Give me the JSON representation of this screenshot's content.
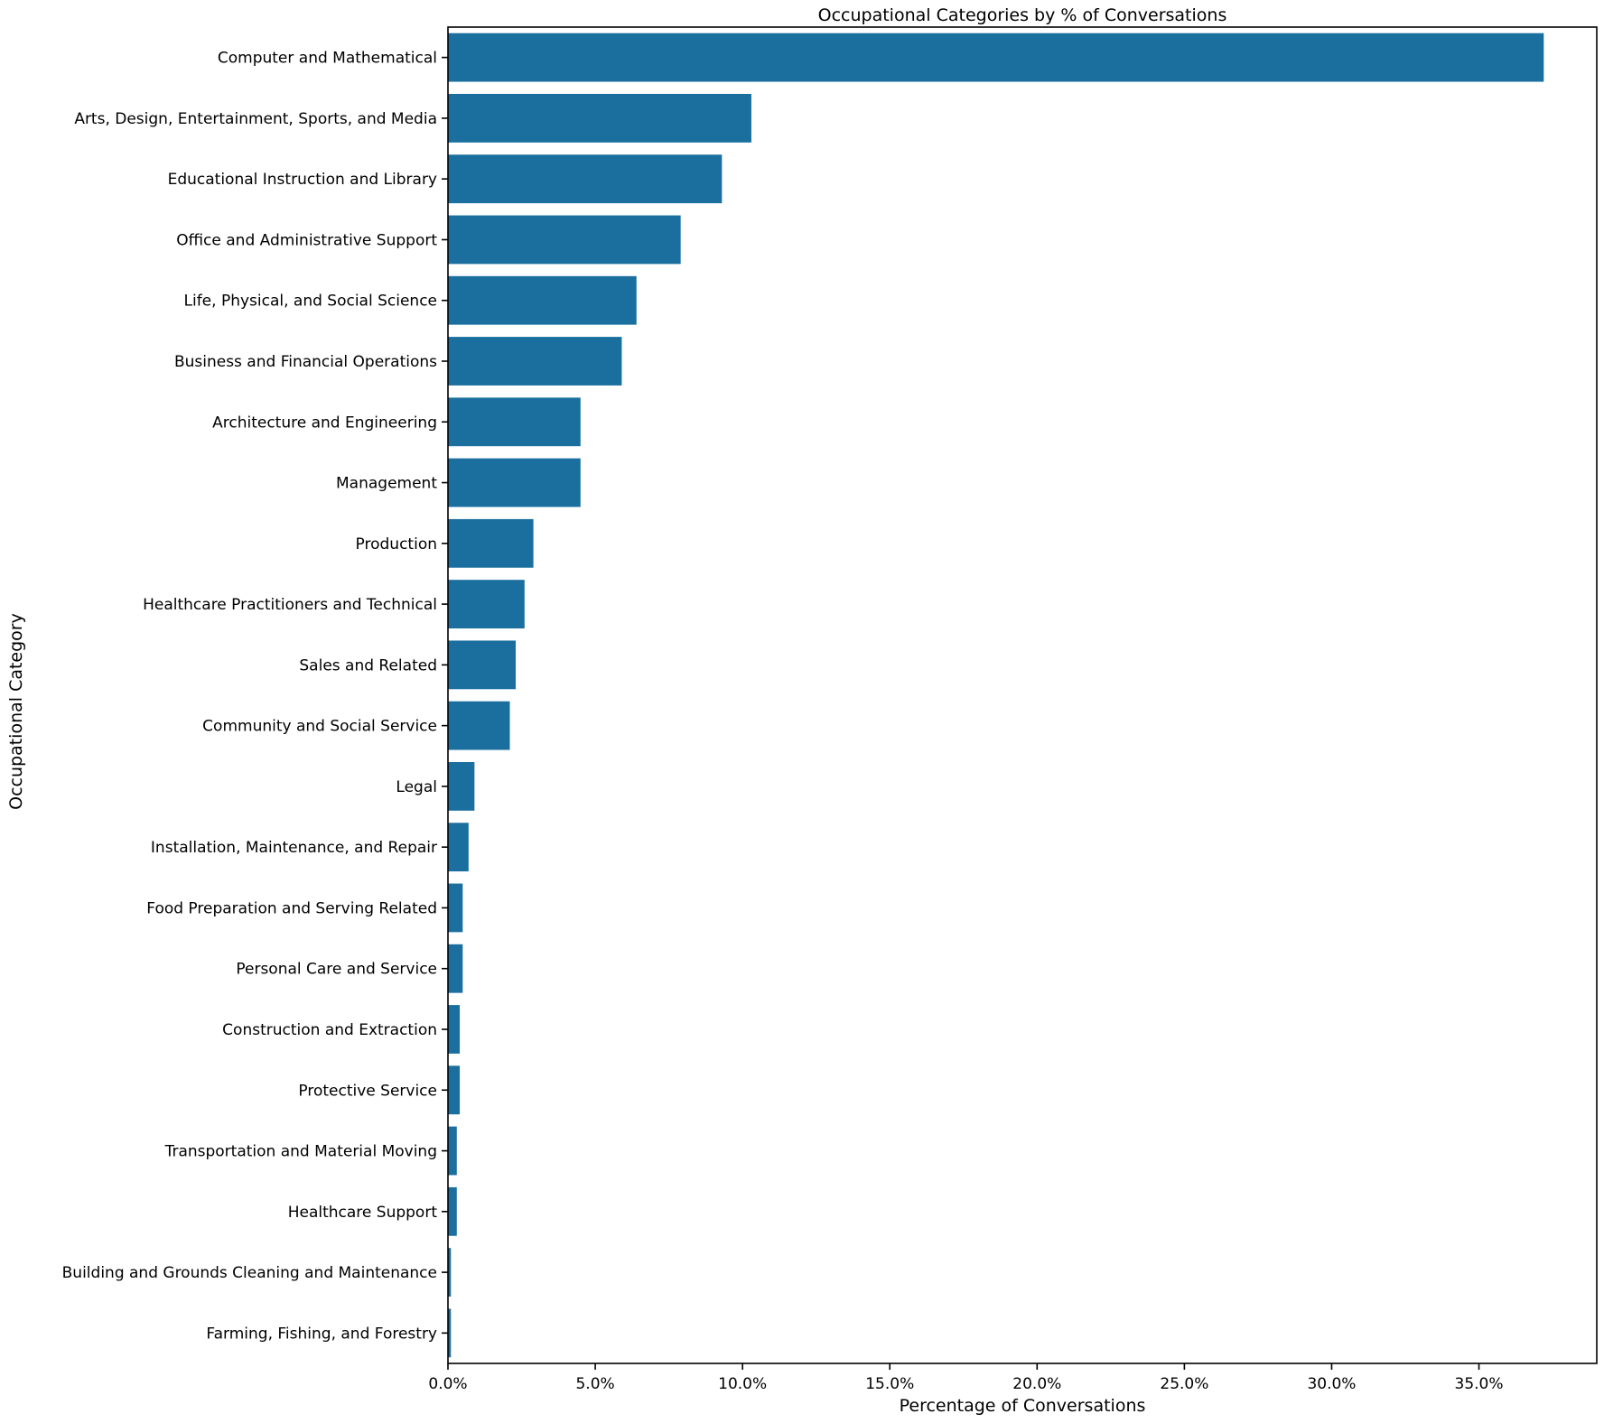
{
  "chart_data": {
    "type": "bar",
    "orientation": "horizontal",
    "title": "Occupational Categories by % of Conversations",
    "xlabel": "Percentage of Conversations",
    "ylabel": "Occupational Category",
    "xlim": [
      0,
      39
    ],
    "x_ticks": [
      0,
      5,
      10,
      15,
      20,
      25,
      30,
      35
    ],
    "x_tick_labels": [
      "0.0%",
      "5.0%",
      "10.0%",
      "15.0%",
      "20.0%",
      "25.0%",
      "30.0%",
      "35.0%"
    ],
    "grid": false,
    "legend": "none",
    "bar_color": "#1a6f9f",
    "categories": [
      "Computer and Mathematical",
      "Arts, Design, Entertainment, Sports, and Media",
      "Educational Instruction and Library",
      "Office and Administrative Support",
      "Life, Physical, and Social Science",
      "Business and Financial Operations",
      "Architecture and Engineering",
      "Management",
      "Production",
      "Healthcare Practitioners and Technical",
      "Sales and Related",
      "Community and Social Service",
      "Legal",
      "Installation, Maintenance, and Repair",
      "Food Preparation and Serving Related",
      "Personal Care and Service",
      "Construction and Extraction",
      "Protective Service",
      "Transportation and Material Moving",
      "Healthcare Support",
      "Building and Grounds Cleaning and Maintenance",
      "Farming, Fishing, and Forestry"
    ],
    "values": [
      37.2,
      10.3,
      9.3,
      7.9,
      6.4,
      5.9,
      4.5,
      4.5,
      2.9,
      2.6,
      2.3,
      2.1,
      0.9,
      0.7,
      0.5,
      0.5,
      0.4,
      0.4,
      0.3,
      0.3,
      0.1,
      0.1
    ]
  }
}
